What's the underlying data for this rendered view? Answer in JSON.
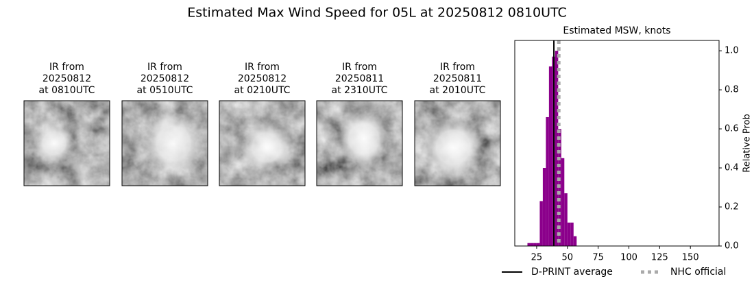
{
  "title": "Estimated Max Wind Speed for 05L at 20250812 0810UTC",
  "panels": [
    {
      "lines": [
        "IR from",
        "20250812",
        "at 0810UTC"
      ]
    },
    {
      "lines": [
        "IR from",
        "20250812",
        "at 0510UTC"
      ]
    },
    {
      "lines": [
        "IR from",
        "20250812",
        "at 0210UTC"
      ]
    },
    {
      "lines": [
        "IR from",
        "20250811",
        "at 2310UTC"
      ]
    },
    {
      "lines": [
        "IR from",
        "20250811",
        "at 2010UTC"
      ]
    }
  ],
  "chart_data": {
    "type": "histogram",
    "title": "Estimated MSW, knots",
    "y_label": "Relative Prob",
    "bins": [
      17.5,
      20,
      22.5,
      25,
      27.5,
      30,
      32.5,
      35,
      37.5,
      40,
      42.5,
      45,
      47.5,
      50,
      52.5,
      55,
      57.5
    ],
    "values": [
      0.015,
      0.015,
      0.015,
      0.015,
      0.23,
      0.4,
      0.66,
      0.92,
      0.97,
      1.0,
      0.6,
      0.45,
      0.27,
      0.12,
      0.12,
      0.05
    ],
    "color": "#8b008b",
    "xlim": [
      7.2,
      173.3
    ],
    "xticks": [
      25,
      50,
      75,
      100,
      125,
      150
    ],
    "ylim": [
      0,
      1.053
    ],
    "yticks": [
      0.0,
      0.2,
      0.4,
      0.6,
      0.8,
      1.0
    ],
    "y_axis_side": "right",
    "reference_lines": [
      {
        "name": "D-PRINT average",
        "value": 39,
        "color": "#000000",
        "style": "solid"
      },
      {
        "name": "NHC official",
        "value": 43,
        "color": "#aaaaaa",
        "style": "dotted"
      }
    ]
  }
}
